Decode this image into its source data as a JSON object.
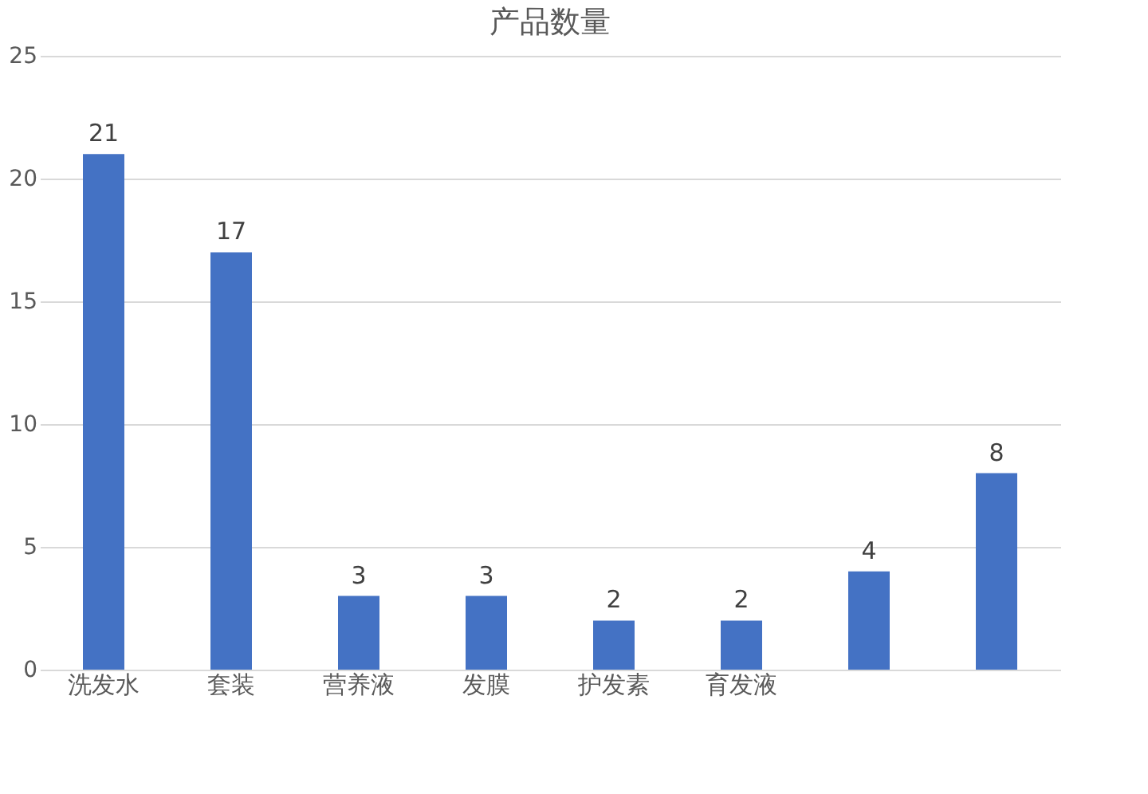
{
  "chart_data": {
    "type": "bar",
    "title": "产品数量",
    "categories": [
      "洗发水",
      "套装",
      "营养液",
      "发膜",
      "护发素",
      "育发液",
      null,
      null
    ],
    "values": [
      21,
      17,
      3,
      3,
      2,
      2,
      4,
      8
    ],
    "color": "#4472c4",
    "ylim": [
      0,
      25
    ],
    "yticks": [
      0,
      5,
      10,
      15,
      20,
      25
    ],
    "grid": "y",
    "data_labels": true
  }
}
